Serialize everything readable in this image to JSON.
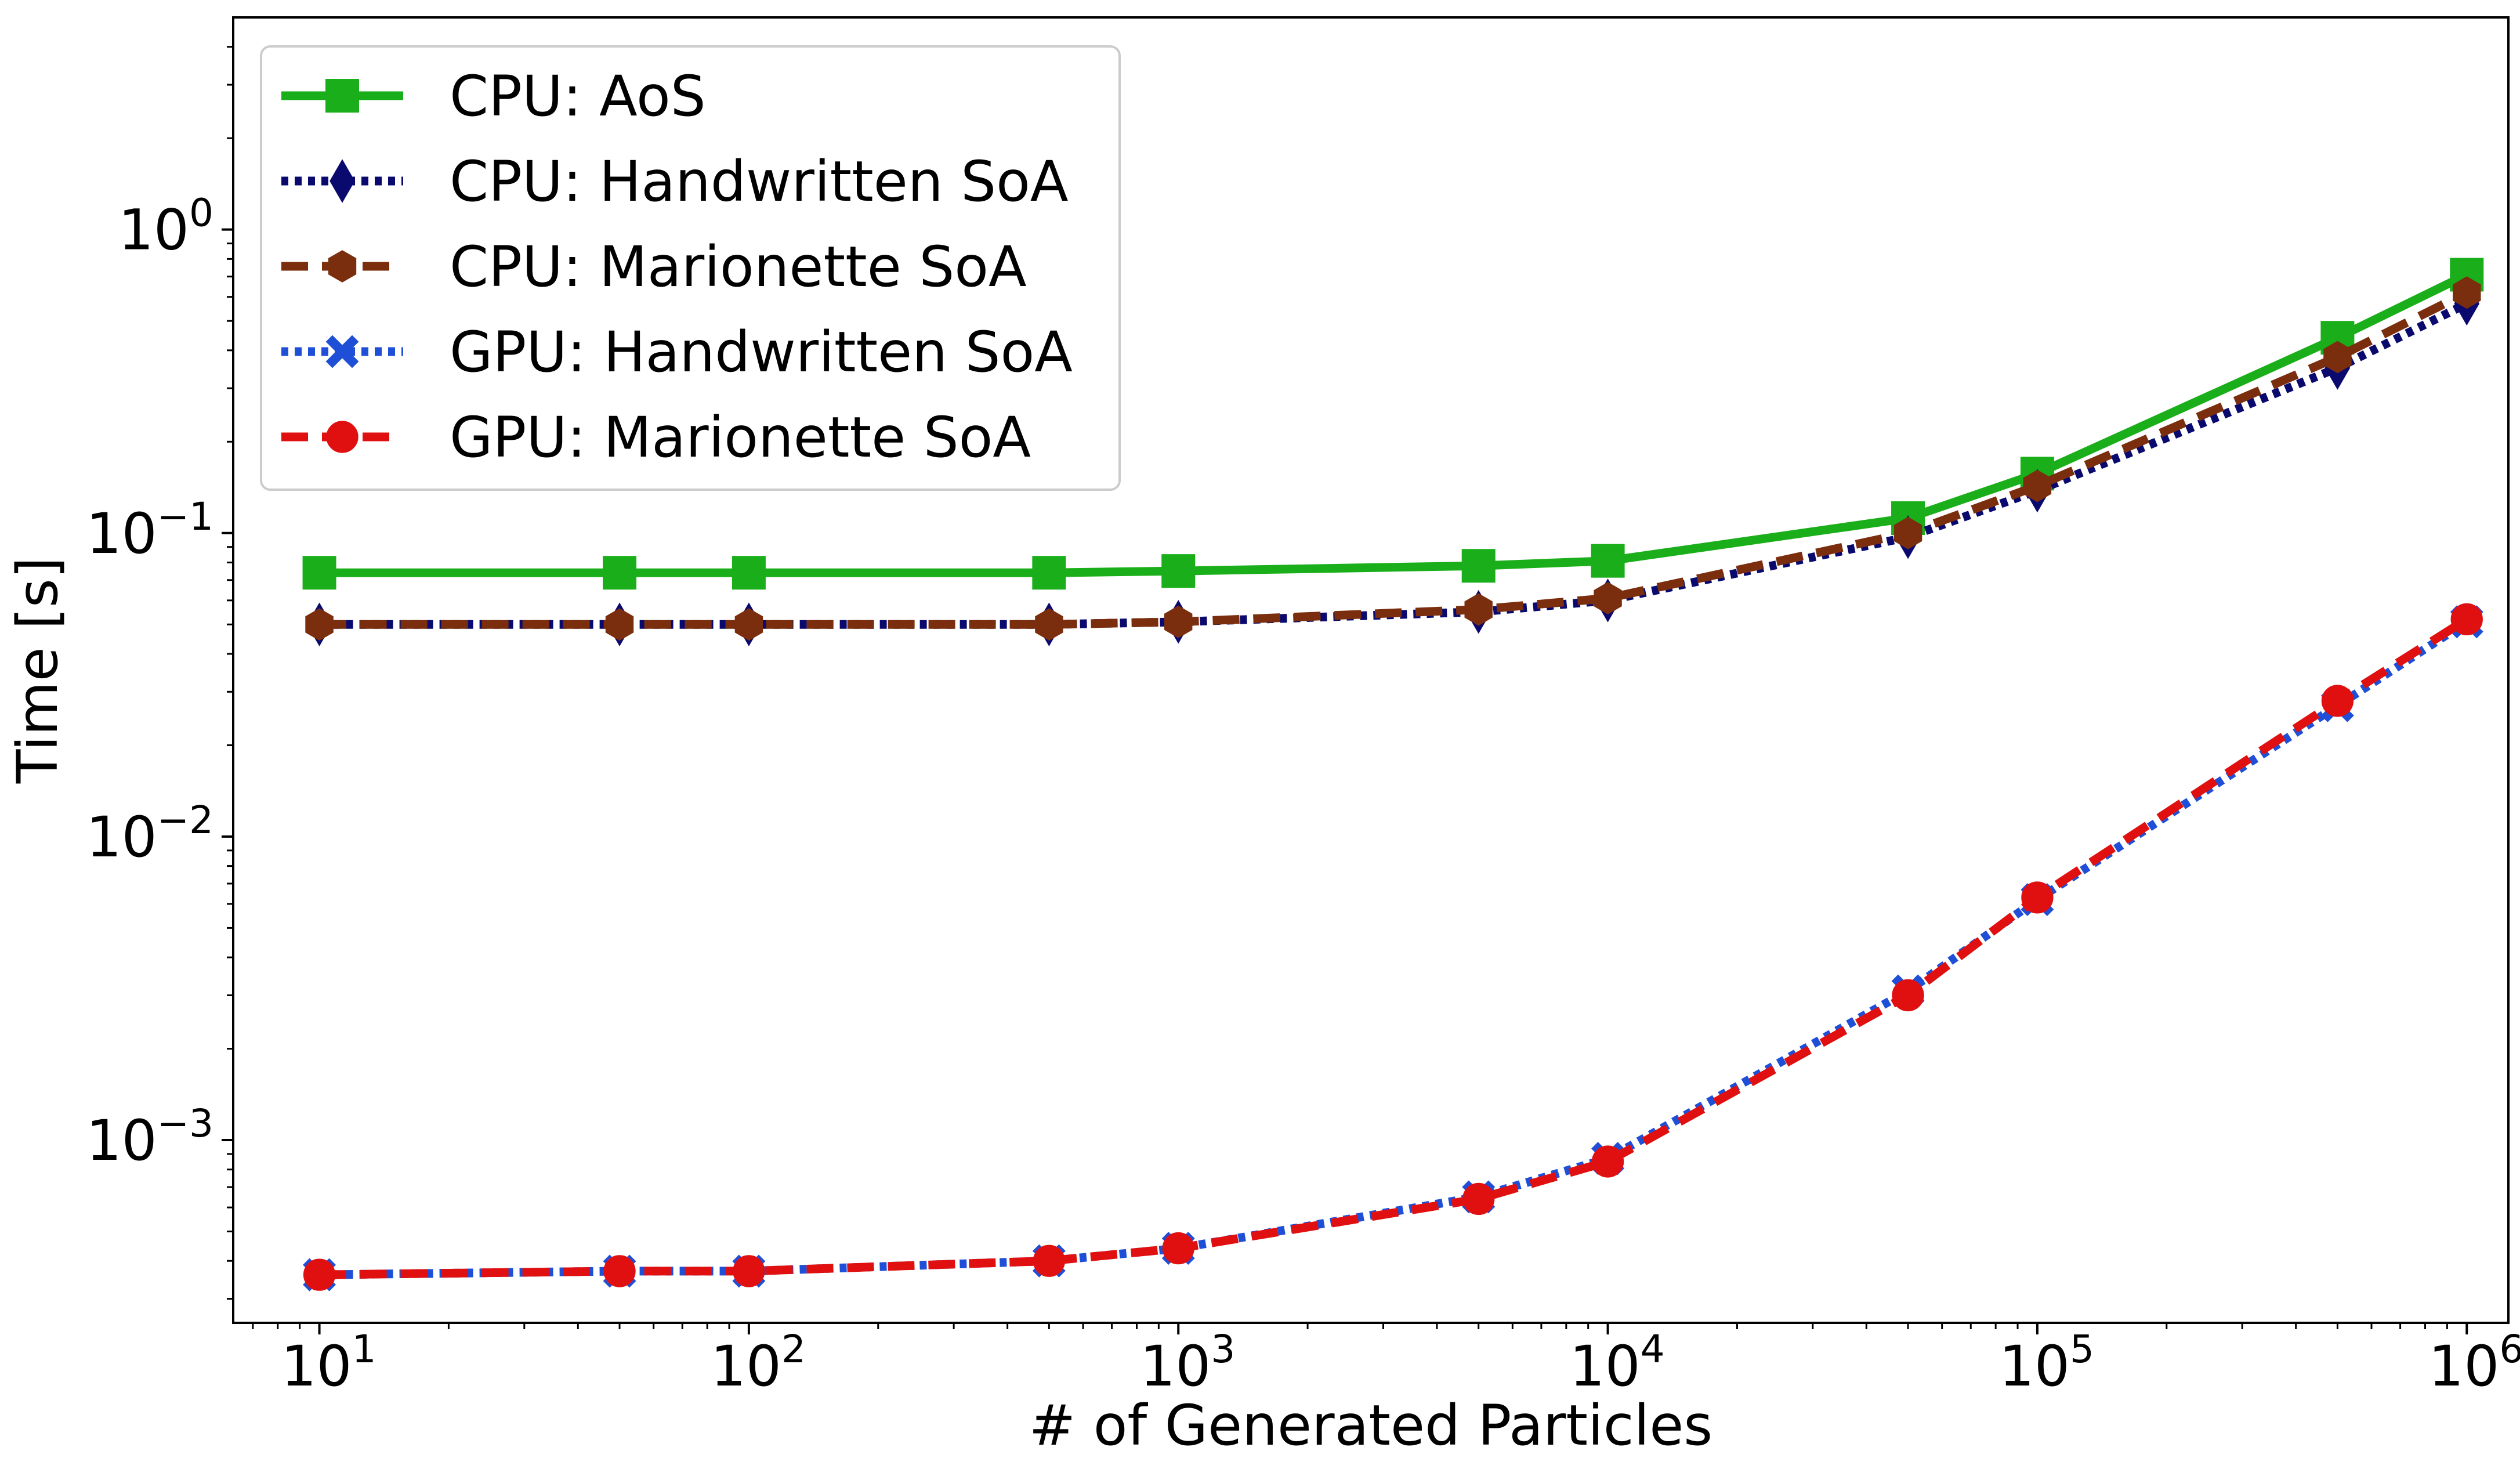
{
  "chart_data": {
    "type": "line",
    "title": "",
    "xlabel": "# of Generated Particles",
    "ylabel": "Time [s]",
    "xscale": "log",
    "yscale": "log",
    "xlim": [
      6.3,
      1250000
    ],
    "ylim": [
      0.00025,
      5.0
    ],
    "x_ticks": [
      {
        "value": 10,
        "base": "10",
        "exp": "1"
      },
      {
        "value": 100,
        "base": "10",
        "exp": "2"
      },
      {
        "value": 1000,
        "base": "10",
        "exp": "3"
      },
      {
        "value": 10000,
        "base": "10",
        "exp": "4"
      },
      {
        "value": 100000,
        "base": "10",
        "exp": "5"
      },
      {
        "value": 1000000,
        "base": "10",
        "exp": "6"
      }
    ],
    "y_ticks": [
      {
        "value": 1,
        "base": "10",
        "exp": "0"
      },
      {
        "value": 0.1,
        "base": "10",
        "exp": "−1"
      },
      {
        "value": 0.01,
        "base": "10",
        "exp": "−2"
      },
      {
        "value": 0.001,
        "base": "10",
        "exp": "−3"
      }
    ],
    "grid": false,
    "legend_position": "top-left",
    "x": [
      10,
      50,
      100,
      500,
      1000,
      5000,
      10000,
      50000,
      100000,
      500000,
      1000000
    ],
    "series": [
      {
        "name": "CPU: AoS",
        "color": "#1aaf1a",
        "linestyle": "solid",
        "marker": "square",
        "values": [
          0.074,
          0.074,
          0.074,
          0.074,
          0.075,
          0.078,
          0.081,
          0.112,
          0.157,
          0.44,
          0.71
        ]
      },
      {
        "name": "CPU: Handwritten SoA",
        "color": "#0a0a6e",
        "linestyle": "dotted",
        "marker": "diamond",
        "values": [
          0.05,
          0.05,
          0.05,
          0.05,
          0.051,
          0.055,
          0.06,
          0.097,
          0.138,
          0.35,
          0.57
        ]
      },
      {
        "name": "CPU: Marionette SoA",
        "color": "#7a2e0e",
        "linestyle": "dashed",
        "marker": "hexagon",
        "values": [
          0.05,
          0.05,
          0.05,
          0.05,
          0.051,
          0.056,
          0.061,
          0.1,
          0.143,
          0.38,
          0.62
        ]
      },
      {
        "name": "GPU: Handwritten SoA",
        "color": "#1f4fd6",
        "linestyle": "dotted",
        "marker": "x",
        "values": [
          0.00036,
          0.00037,
          0.00037,
          0.0004,
          0.00044,
          0.00065,
          0.00087,
          0.0031,
          0.0062,
          0.027,
          0.051
        ]
      },
      {
        "name": "GPU: Marionette SoA",
        "color": "#e01010",
        "linestyle": "dashed",
        "marker": "circle",
        "values": [
          0.00036,
          0.00037,
          0.00037,
          0.0004,
          0.00044,
          0.00064,
          0.00085,
          0.003,
          0.0063,
          0.028,
          0.052
        ]
      }
    ]
  }
}
